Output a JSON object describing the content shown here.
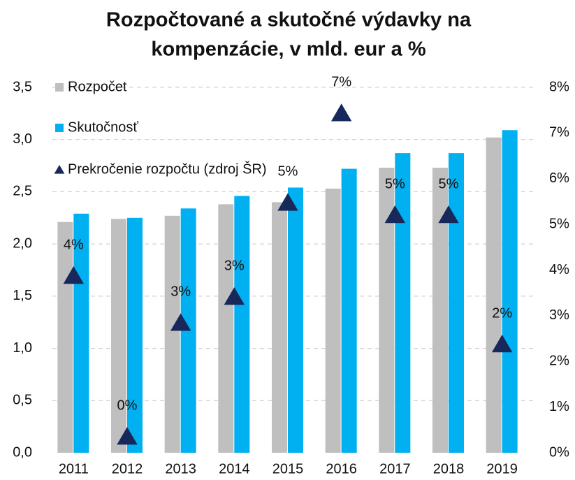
{
  "chart_data": {
    "type": "bar",
    "title": [
      "Rozpočtované a skutočné výdavky na",
      "kompenzácie, v mld. eur a %"
    ],
    "categories": [
      "2011",
      "2012",
      "2013",
      "2014",
      "2015",
      "2016",
      "2017",
      "2018",
      "2019"
    ],
    "series": [
      {
        "name": "Rozpočet",
        "color": "#bfbfbf",
        "values": [
          2.21,
          2.24,
          2.27,
          2.38,
          2.4,
          2.53,
          2.73,
          2.73,
          3.02
        ]
      },
      {
        "name": "Skutočnosť",
        "color": "#00b0f0",
        "values": [
          2.29,
          2.25,
          2.34,
          2.46,
          2.54,
          2.72,
          2.87,
          2.87,
          3.09
        ]
      },
      {
        "name": "Prekročenie rozpočtu (zdroj ŠR)",
        "color": "#17285a",
        "axis": "y2",
        "marker": "triangle",
        "values": [
          3.87,
          0.35,
          2.84,
          3.41,
          5.47,
          7.43,
          5.2,
          5.2,
          2.37
        ],
        "value_labels": [
          "4%",
          "0%",
          "3%",
          "3%",
          "5%",
          "7%",
          "5%",
          "5%",
          "2%"
        ]
      }
    ],
    "ylim": [
      0,
      3.5
    ],
    "yticks": [
      {
        "value": 0,
        "label": "0,0"
      },
      {
        "value": 0.5,
        "label": "0,5"
      },
      {
        "value": 1,
        "label": "1,0"
      },
      {
        "value": 1.5,
        "label": "1,5"
      },
      {
        "value": 2,
        "label": "2,0"
      },
      {
        "value": 2.5,
        "label": "2,5"
      },
      {
        "value": 3,
        "label": "3,0"
      },
      {
        "value": 3.5,
        "label": "3,5"
      }
    ],
    "y2lim": [
      0,
      8
    ],
    "y2ticks": [
      {
        "value": 0,
        "label": "0%"
      },
      {
        "value": 1,
        "label": "1%"
      },
      {
        "value": 2,
        "label": "2%"
      },
      {
        "value": 3,
        "label": "3%"
      },
      {
        "value": 4,
        "label": "4%"
      },
      {
        "value": 5,
        "label": "5%"
      },
      {
        "value": 6,
        "label": "6%"
      },
      {
        "value": 7,
        "label": "7%"
      },
      {
        "value": 8,
        "label": "8%"
      }
    ],
    "grid": true,
    "legend": "top-left"
  }
}
